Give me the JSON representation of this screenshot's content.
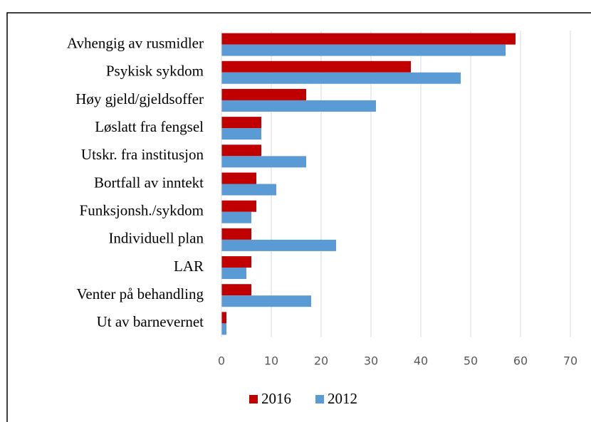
{
  "chart_data": {
    "type": "barh",
    "categories": [
      "Avhengig av rusmidler",
      "Psykisk sykdom",
      "Høy gjeld/gjeldsoffer",
      "Løslatt fra fengsel",
      "Utskr. fra institusjon",
      "Bortfall av inntekt",
      "Funksjonsh./sykdom",
      "Individuell plan",
      "LAR",
      "Venter på behandling",
      "Ut av barnevernet"
    ],
    "series": [
      {
        "name": "2016",
        "color": "#c00000",
        "values": [
          59,
          38,
          17,
          8,
          8,
          7,
          7,
          6,
          6,
          6,
          1
        ]
      },
      {
        "name": "2012",
        "color": "#5b9bd5",
        "values": [
          57,
          48,
          31,
          8,
          17,
          11,
          6,
          23,
          5,
          18,
          1
        ]
      }
    ],
    "xlim": [
      0,
      70
    ],
    "xticks": [
      0,
      10,
      20,
      30,
      40,
      50,
      60,
      70
    ],
    "grid": true,
    "legend": "bottom"
  }
}
